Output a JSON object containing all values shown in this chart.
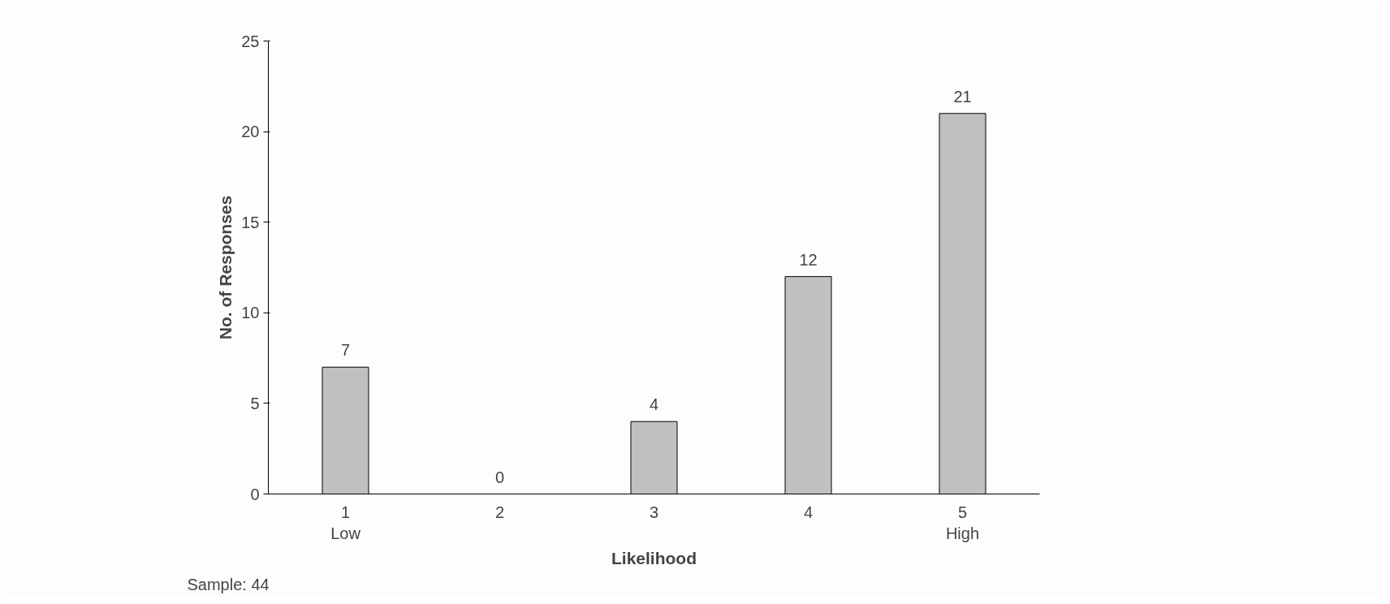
{
  "chart_data": {
    "type": "bar",
    "xlabel": "Likelihood",
    "ylabel": "No. of Responses",
    "categories": [
      "1\nLow",
      "2",
      "3",
      "4",
      "5\nHigh"
    ],
    "values": [
      7,
      0,
      4,
      12,
      21
    ],
    "color": "#c0c0c0",
    "ylim": [
      0,
      25
    ],
    "yticks": [
      0,
      5,
      10,
      15,
      20,
      25
    ],
    "grid": false,
    "data_labels": true,
    "annotations": [
      "Sample: 44"
    ]
  }
}
